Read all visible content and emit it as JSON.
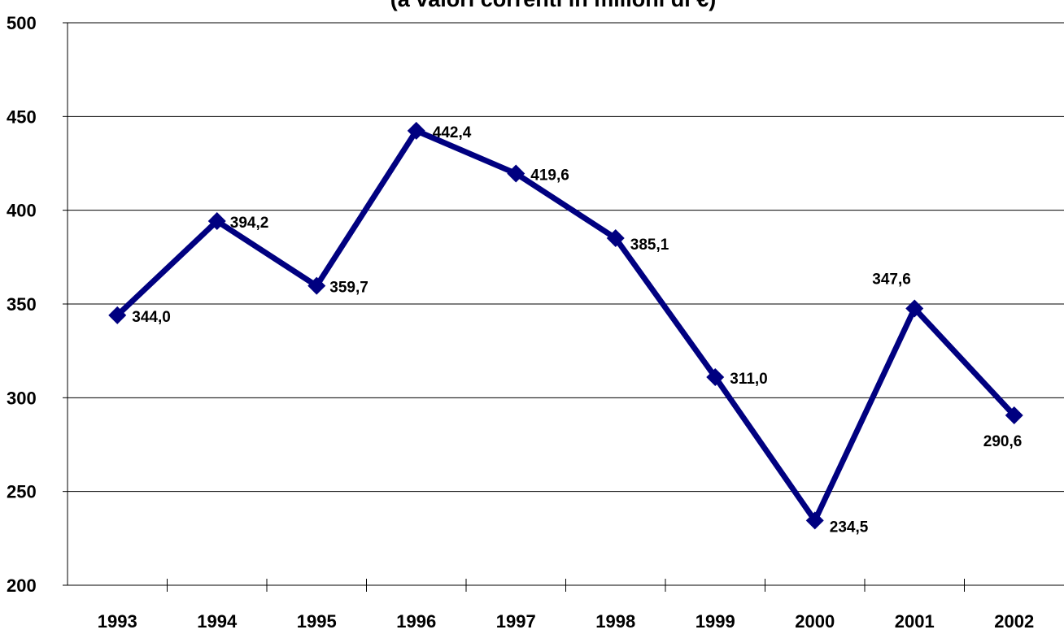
{
  "chart_data": {
    "type": "line",
    "title": "(a valori correnti in milioni di €)",
    "categories": [
      "1993",
      "1994",
      "1995",
      "1996",
      "1997",
      "1998",
      "1999",
      "2000",
      "2001",
      "2002"
    ],
    "series": [
      {
        "name": null,
        "color": "#000080",
        "values": [
          344.0,
          394.2,
          359.7,
          442.4,
          419.6,
          385.1,
          311.0,
          234.5,
          347.6,
          290.6
        ],
        "value_labels": [
          "344,0",
          "394,2",
          "359,7",
          "442,4",
          "419,6",
          "385,1",
          "311,0",
          "234,5",
          "347,6",
          "290,6"
        ]
      }
    ],
    "ylim": [
      200,
      500
    ],
    "yticks": [
      200,
      250,
      300,
      350,
      400,
      450,
      500
    ],
    "grid": true
  }
}
